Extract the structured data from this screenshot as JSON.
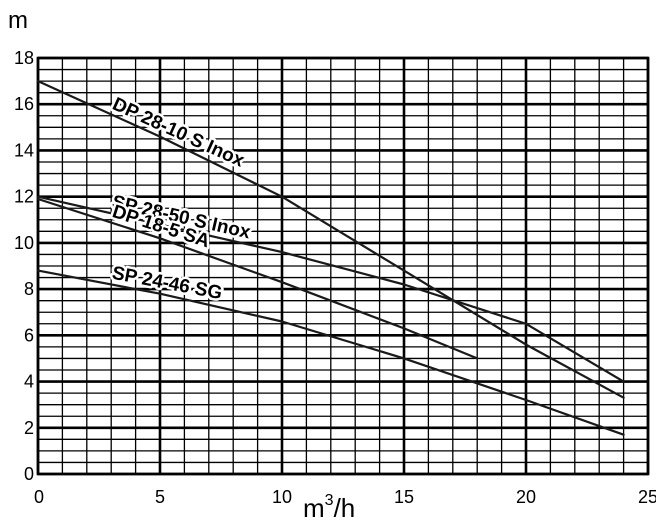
{
  "chart_data": {
    "type": "line",
    "title": "",
    "xlabel": "",
    "ylabel": "m",
    "x_unit": {
      "base": "m",
      "exponent": "3",
      "suffix": "/h"
    },
    "xlim": [
      0,
      25
    ],
    "ylim": [
      0,
      18
    ],
    "x_ticks": [
      "0",
      "5",
      "10",
      "15",
      "20",
      "25"
    ],
    "y_ticks": [
      "0",
      "2",
      "4",
      "6",
      "8",
      "10",
      "12",
      "14",
      "16",
      "18"
    ],
    "grid": true,
    "grid_minor": {
      "x_step": 1,
      "y_step": 0.5
    },
    "grid_major": {
      "x_step": 5,
      "y_step": 2
    },
    "series": [
      {
        "name": "DP 28-10 S Inox",
        "x": [
          0,
          5,
          10,
          15,
          20,
          24
        ],
        "y": [
          17,
          14.6,
          12,
          8.8,
          5.6,
          3.3
        ]
      },
      {
        "name": "SP 28-50 S Inox",
        "x": [
          0,
          5,
          10,
          15,
          20,
          24
        ],
        "y": [
          12,
          10.8,
          9.6,
          8.2,
          6.5,
          4
        ]
      },
      {
        "name": "DP 18-5 SA",
        "x": [
          0,
          5,
          10,
          15,
          18
        ],
        "y": [
          11.9,
          10.2,
          8.3,
          6.3,
          5
        ]
      },
      {
        "name": "SP 24-46 SG",
        "x": [
          0,
          5,
          10,
          15,
          20,
          24
        ],
        "y": [
          8.8,
          7.8,
          6.6,
          5,
          3.2,
          1.7
        ]
      }
    ]
  }
}
